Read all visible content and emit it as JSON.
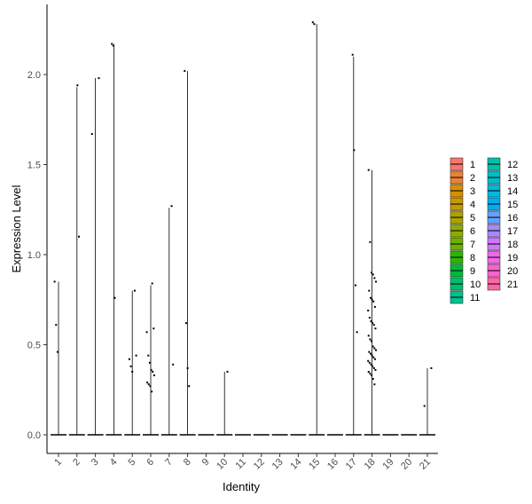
{
  "chart_data": {
    "type": "violin",
    "xlabel": "Identity",
    "ylabel": "Expression Level",
    "categories": [
      "1",
      "2",
      "3",
      "4",
      "5",
      "6",
      "7",
      "8",
      "9",
      "10",
      "11",
      "12",
      "13",
      "14",
      "15",
      "16",
      "17",
      "18",
      "19",
      "20",
      "21"
    ],
    "ylim": [
      -0.1,
      2.35
    ],
    "yticks": [
      0.0,
      0.5,
      1.0,
      1.5,
      2.0
    ],
    "ytick_labels": [
      "0.0",
      "0.5",
      "1.0",
      "1.5",
      "2.0"
    ],
    "colors": [
      "#F8766D",
      "#EB8335",
      "#DA8F00",
      "#C59900",
      "#AEA200",
      "#91AA00",
      "#6BB100",
      "#2CB600",
      "#00BA38",
      "#00BE6C",
      "#00C08D",
      "#00C0AB",
      "#00BDC6",
      "#00B8DE",
      "#00AEF3",
      "#61A2FF",
      "#A58AFF",
      "#D177FF",
      "#EE67EC",
      "#FF61CF",
      "#FF66A8"
    ],
    "legend": {
      "position": "right",
      "entries": [
        "1",
        "2",
        "3",
        "4",
        "5",
        "6",
        "7",
        "8",
        "9",
        "10",
        "11",
        "12",
        "13",
        "14",
        "15",
        "16",
        "17",
        "18",
        "19",
        "20",
        "21"
      ]
    },
    "violin_max": [
      0.85,
      1.93,
      1.98,
      2.17,
      0.8,
      0.83,
      1.26,
      2.02,
      0.0,
      0.35,
      0.0,
      0.0,
      0.0,
      0.0,
      2.28,
      0.0,
      2.1,
      1.47,
      0.0,
      0.0,
      0.37
    ],
    "points": [
      {
        "x": 1,
        "y": 0.85
      },
      {
        "x": 1,
        "y": 0.61
      },
      {
        "x": 1,
        "y": 0.46
      },
      {
        "x": 2,
        "y": 1.94
      },
      {
        "x": 2,
        "y": 1.1
      },
      {
        "x": 3,
        "y": 1.98
      },
      {
        "x": 3,
        "y": 1.67
      },
      {
        "x": 4,
        "y": 2.17
      },
      {
        "x": 4,
        "y": 2.16
      },
      {
        "x": 4,
        "y": 0.76
      },
      {
        "x": 5,
        "y": 0.8
      },
      {
        "x": 5,
        "y": 0.44
      },
      {
        "x": 5,
        "y": 0.42
      },
      {
        "x": 5,
        "y": 0.38
      },
      {
        "x": 5,
        "y": 0.35
      },
      {
        "x": 6,
        "y": 0.84
      },
      {
        "x": 6,
        "y": 0.59
      },
      {
        "x": 6,
        "y": 0.57
      },
      {
        "x": 6,
        "y": 0.44
      },
      {
        "x": 6,
        "y": 0.4
      },
      {
        "x": 6,
        "y": 0.36
      },
      {
        "x": 6,
        "y": 0.35
      },
      {
        "x": 6,
        "y": 0.33
      },
      {
        "x": 6,
        "y": 0.29
      },
      {
        "x": 6,
        "y": 0.28
      },
      {
        "x": 6,
        "y": 0.27
      },
      {
        "x": 6,
        "y": 0.24
      },
      {
        "x": 7,
        "y": 1.27
      },
      {
        "x": 7,
        "y": 0.39
      },
      {
        "x": 8,
        "y": 2.02
      },
      {
        "x": 8,
        "y": 0.62
      },
      {
        "x": 8,
        "y": 0.37
      },
      {
        "x": 8,
        "y": 0.27
      },
      {
        "x": 10,
        "y": 0.35
      },
      {
        "x": 15,
        "y": 2.29
      },
      {
        "x": 15,
        "y": 2.28
      },
      {
        "x": 17,
        "y": 2.11
      },
      {
        "x": 17,
        "y": 1.58
      },
      {
        "x": 17,
        "y": 0.83
      },
      {
        "x": 17,
        "y": 0.57
      },
      {
        "x": 18,
        "y": 1.47
      },
      {
        "x": 18,
        "y": 1.07
      },
      {
        "x": 18,
        "y": 0.9
      },
      {
        "x": 18,
        "y": 0.89
      },
      {
        "x": 18,
        "y": 0.87
      },
      {
        "x": 18,
        "y": 0.85
      },
      {
        "x": 18,
        "y": 0.8
      },
      {
        "x": 18,
        "y": 0.76
      },
      {
        "x": 18,
        "y": 0.75
      },
      {
        "x": 18,
        "y": 0.74
      },
      {
        "x": 18,
        "y": 0.71
      },
      {
        "x": 18,
        "y": 0.69
      },
      {
        "x": 18,
        "y": 0.65
      },
      {
        "x": 18,
        "y": 0.63
      },
      {
        "x": 18,
        "y": 0.62
      },
      {
        "x": 18,
        "y": 0.61
      },
      {
        "x": 18,
        "y": 0.59
      },
      {
        "x": 18,
        "y": 0.55
      },
      {
        "x": 18,
        "y": 0.53
      },
      {
        "x": 18,
        "y": 0.52
      },
      {
        "x": 18,
        "y": 0.49
      },
      {
        "x": 18,
        "y": 0.48
      },
      {
        "x": 18,
        "y": 0.47
      },
      {
        "x": 18,
        "y": 0.46
      },
      {
        "x": 18,
        "y": 0.45
      },
      {
        "x": 18,
        "y": 0.44
      },
      {
        "x": 18,
        "y": 0.43
      },
      {
        "x": 18,
        "y": 0.42
      },
      {
        "x": 18,
        "y": 0.41
      },
      {
        "x": 18,
        "y": 0.4
      },
      {
        "x": 18,
        "y": 0.39
      },
      {
        "x": 18,
        "y": 0.38
      },
      {
        "x": 18,
        "y": 0.37
      },
      {
        "x": 18,
        "y": 0.36
      },
      {
        "x": 18,
        "y": 0.35
      },
      {
        "x": 18,
        "y": 0.34
      },
      {
        "x": 18,
        "y": 0.33
      },
      {
        "x": 18,
        "y": 0.31
      },
      {
        "x": 18,
        "y": 0.28
      },
      {
        "x": 21,
        "y": 0.37
      },
      {
        "x": 21,
        "y": 0.16
      }
    ]
  }
}
